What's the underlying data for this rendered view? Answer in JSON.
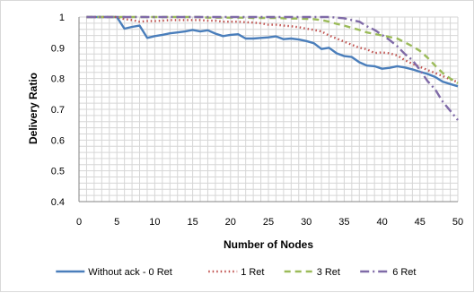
{
  "chart_data": {
    "type": "line",
    "title": "",
    "xlabel": "Number of Nodes",
    "ylabel": "Delivery Ratio",
    "xlim": [
      0,
      50
    ],
    "ylim": [
      0.4,
      1.0
    ],
    "x_ticks": [
      "0",
      "5",
      "10",
      "15",
      "20",
      "25",
      "30",
      "35",
      "40",
      "45",
      "50"
    ],
    "y_ticks": [
      "0.4",
      "0.5",
      "0.6",
      "0.7",
      "0.8",
      "0.9",
      "1"
    ],
    "grid": true,
    "legend_position": "bottom",
    "series": [
      {
        "name": "Without ack - 0 Ret",
        "color": "#4a7ebb",
        "style": "solid",
        "x": [
          1,
          2,
          3,
          4,
          5,
          6,
          7,
          8,
          9,
          10,
          11,
          12,
          13,
          14,
          15,
          16,
          17,
          18,
          19,
          20,
          21,
          22,
          23,
          24,
          25,
          26,
          27,
          28,
          29,
          30,
          31,
          32,
          33,
          34,
          35,
          36,
          37,
          38,
          39,
          40,
          41,
          42,
          43,
          44,
          45,
          46,
          47,
          48,
          49,
          50
        ],
        "values": [
          1,
          1,
          1,
          1,
          1,
          0.962,
          0.968,
          0.972,
          0.932,
          0.938,
          0.942,
          0.947,
          0.95,
          0.953,
          0.958,
          0.953,
          0.957,
          0.946,
          0.938,
          0.942,
          0.944,
          0.93,
          0.93,
          0.932,
          0.934,
          0.937,
          0.928,
          0.93,
          0.927,
          0.922,
          0.915,
          0.896,
          0.9,
          0.882,
          0.873,
          0.87,
          0.853,
          0.842,
          0.84,
          0.832,
          0.835,
          0.84,
          0.836,
          0.83,
          0.822,
          0.815,
          0.805,
          0.79,
          0.782,
          0.775
        ]
      },
      {
        "name": "1 Ret",
        "color": "#c0504d",
        "style": "dotted",
        "x": [
          1,
          2,
          3,
          4,
          5,
          6,
          7,
          8,
          9,
          10,
          11,
          12,
          13,
          14,
          15,
          16,
          17,
          18,
          19,
          20,
          21,
          22,
          23,
          24,
          25,
          26,
          27,
          28,
          29,
          30,
          31,
          32,
          33,
          34,
          35,
          36,
          37,
          38,
          39,
          40,
          41,
          42,
          43,
          44,
          45,
          46,
          47,
          48,
          49,
          50
        ],
        "values": [
          1,
          1,
          1,
          1,
          1,
          0.993,
          0.99,
          0.985,
          0.987,
          0.987,
          0.988,
          0.99,
          0.99,
          0.99,
          0.99,
          0.99,
          0.988,
          0.988,
          0.985,
          0.985,
          0.985,
          0.983,
          0.982,
          0.98,
          0.975,
          0.975,
          0.972,
          0.97,
          0.967,
          0.962,
          0.958,
          0.953,
          0.94,
          0.93,
          0.92,
          0.91,
          0.9,
          0.895,
          0.883,
          0.885,
          0.882,
          0.875,
          0.86,
          0.848,
          0.838,
          0.828,
          0.818,
          0.808,
          0.798,
          0.788
        ]
      },
      {
        "name": "3 Ret",
        "color": "#9bbb59",
        "style": "dashed",
        "x": [
          1,
          2,
          3,
          4,
          5,
          6,
          7,
          8,
          9,
          10,
          11,
          12,
          13,
          14,
          15,
          16,
          17,
          18,
          19,
          20,
          21,
          22,
          23,
          24,
          25,
          26,
          27,
          28,
          29,
          30,
          31,
          32,
          33,
          34,
          35,
          36,
          37,
          38,
          39,
          40,
          41,
          42,
          43,
          44,
          45,
          46,
          47,
          48,
          49,
          50
        ],
        "values": [
          1,
          1,
          1,
          1,
          1,
          1,
          1,
          1,
          1,
          1,
          1,
          1,
          1,
          1,
          1,
          1,
          0.998,
          0.998,
          0.998,
          0.998,
          0.998,
          0.998,
          0.997,
          0.997,
          0.997,
          0.997,
          0.996,
          0.995,
          0.995,
          0.994,
          0.993,
          0.99,
          0.985,
          0.978,
          0.972,
          0.965,
          0.958,
          0.95,
          0.945,
          0.94,
          0.935,
          0.93,
          0.918,
          0.905,
          0.89,
          0.868,
          0.842,
          0.818,
          0.8,
          0.785
        ]
      },
      {
        "name": "6 Ret",
        "color": "#7f6aa7",
        "style": "dashdot",
        "x": [
          1,
          2,
          3,
          4,
          5,
          6,
          7,
          8,
          9,
          10,
          11,
          12,
          13,
          14,
          15,
          16,
          17,
          18,
          19,
          20,
          21,
          22,
          23,
          24,
          25,
          26,
          27,
          28,
          29,
          30,
          31,
          32,
          33,
          34,
          35,
          36,
          37,
          38,
          39,
          40,
          41,
          42,
          43,
          44,
          45,
          46,
          47,
          48,
          49,
          50
        ],
        "values": [
          1,
          1,
          1,
          1,
          1,
          1,
          1,
          1,
          1,
          1,
          1,
          1,
          1,
          1,
          1,
          1,
          1,
          1,
          1,
          1,
          1,
          1,
          1,
          1,
          1,
          1,
          1,
          1,
          1,
          1,
          1,
          1,
          1,
          0.998,
          0.996,
          0.99,
          0.985,
          0.97,
          0.958,
          0.942,
          0.925,
          0.905,
          0.88,
          0.86,
          0.828,
          0.792,
          0.765,
          0.725,
          0.695,
          0.665
        ]
      }
    ]
  }
}
